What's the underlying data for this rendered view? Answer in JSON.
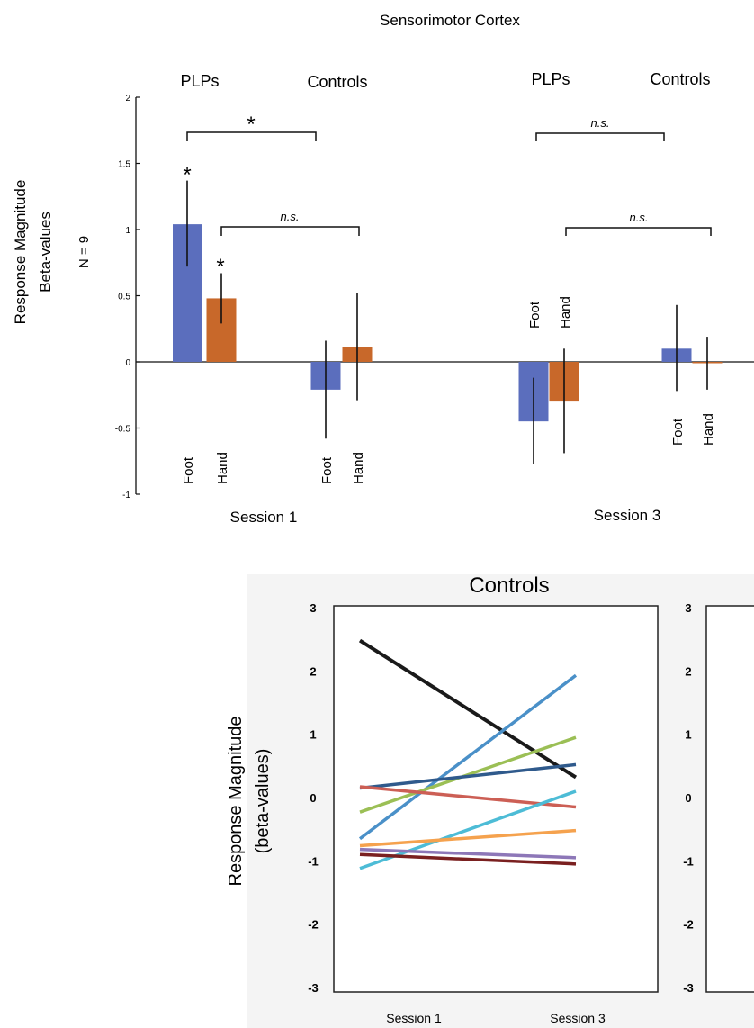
{
  "chart_data": [
    {
      "type": "bar",
      "title": "Sensorimotor Cortex",
      "ylabel_line1": "Response Magnitude",
      "ylabel_line2": "Beta-values",
      "n_label": "N = 9",
      "ylim": [
        -1,
        2
      ],
      "yticks": [
        "2",
        "1.5",
        "1",
        "0.5",
        "0",
        "-0.5",
        "-1"
      ],
      "group_labels": [
        "PLPs",
        "Controls",
        "PLPs",
        "Controls"
      ],
      "session_labels": [
        "Session 1",
        "Session 3"
      ],
      "bar_labels": [
        "Foot",
        "Hand",
        "Foot",
        "Hand",
        "Foot",
        "Hand",
        "Foot",
        "Hand"
      ],
      "colors": {
        "Foot": "#5b6ebd",
        "Hand": "#c8682a"
      },
      "series": [
        {
          "session": "Session 1",
          "group": "PLPs",
          "condition": "Foot",
          "value": 1.04,
          "err_low": 0.72,
          "err_high": 1.37
        },
        {
          "session": "Session 1",
          "group": "PLPs",
          "condition": "Hand",
          "value": 0.48,
          "err_low": 0.29,
          "err_high": 0.67
        },
        {
          "session": "Session 1",
          "group": "Controls",
          "condition": "Foot",
          "value": -0.21,
          "err_low": -0.58,
          "err_high": 0.16
        },
        {
          "session": "Session 1",
          "group": "Controls",
          "condition": "Hand",
          "value": 0.11,
          "err_low": -0.29,
          "err_high": 0.52
        },
        {
          "session": "Session 3",
          "group": "PLPs",
          "condition": "Foot",
          "value": -0.45,
          "err_low": -0.77,
          "err_high": -0.12
        },
        {
          "session": "Session 3",
          "group": "PLPs",
          "condition": "Hand",
          "value": -0.3,
          "err_low": -0.69,
          "err_high": 0.1
        },
        {
          "session": "Session 3",
          "group": "Controls",
          "condition": "Foot",
          "value": 0.1,
          "err_low": -0.22,
          "err_high": 0.43
        },
        {
          "session": "Session 3",
          "group": "Controls",
          "condition": "Hand",
          "value": -0.01,
          "err_low": -0.21,
          "err_high": 0.19
        }
      ],
      "annotations": {
        "star": "*",
        "ns": "n.s."
      }
    },
    {
      "type": "line",
      "title": "Controls",
      "ylabel_line1": "Response Magnitude",
      "ylabel_line2": "(beta-values)",
      "ylim": [
        -3,
        3
      ],
      "yticks": [
        "3",
        "2",
        "1",
        "0",
        "-1",
        "-2",
        "-3"
      ],
      "x": [
        "Session 1",
        "Session 3"
      ],
      "series": [
        {
          "color": "#1a1a1a",
          "values": [
            2.48,
            0.32
          ]
        },
        {
          "color": "#4a90c8",
          "values": [
            -0.65,
            1.93
          ]
        },
        {
          "color": "#9bbf55",
          "values": [
            -0.23,
            0.95
          ]
        },
        {
          "color": "#2f5a8c",
          "values": [
            0.15,
            0.52
          ]
        },
        {
          "color": "#cc5f55",
          "values": [
            0.17,
            -0.15
          ]
        },
        {
          "color": "#4dbcd6",
          "values": [
            -1.12,
            0.1
          ]
        },
        {
          "color": "#f5a24e",
          "values": [
            -0.76,
            -0.52
          ]
        },
        {
          "color": "#8d77b8",
          "values": [
            -0.82,
            -0.95
          ]
        },
        {
          "color": "#7a2020",
          "values": [
            -0.9,
            -1.05
          ]
        }
      ],
      "right_panel_yticks": [
        "3",
        "2",
        "1",
        "0",
        "-1",
        "-2",
        "-3"
      ]
    }
  ]
}
